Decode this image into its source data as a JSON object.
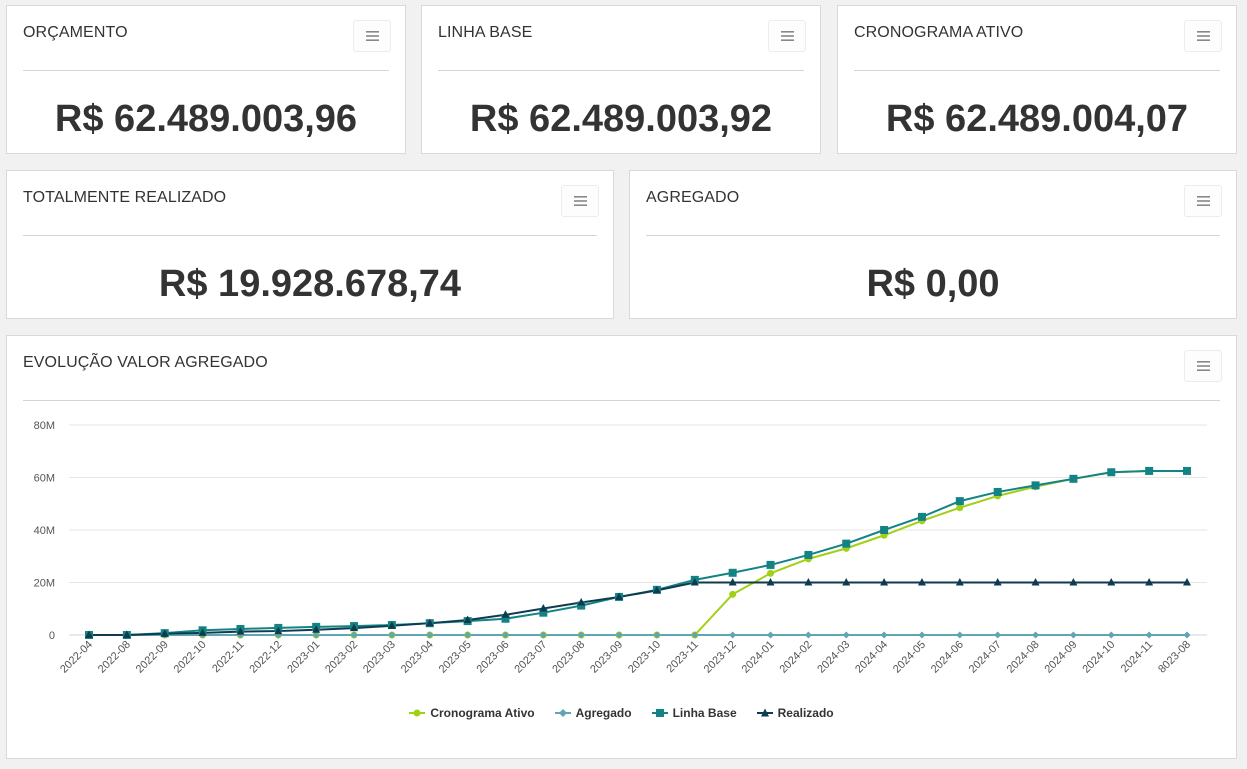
{
  "cards": {
    "orcamento": {
      "title": "ORÇAMENTO",
      "value": "R$ 62.489.003,96"
    },
    "linha_base": {
      "title": "LINHA BASE",
      "value": "R$ 62.489.003,92"
    },
    "cronograma_ativo": {
      "title": "CRONOGRAMA ATIVO",
      "value": "R$ 62.489.004,07"
    },
    "totalmente_realizado": {
      "title": "TOTALMENTE REALIZADO",
      "value": "R$ 19.928.678,74"
    },
    "agregado": {
      "title": "AGREGADO",
      "value": "R$ 0,00"
    }
  },
  "icons": {
    "menu": "hamburger-menu-icon"
  },
  "chart_panel": {
    "title": "EVOLUÇÃO VALOR AGREGADO"
  },
  "chart_data": {
    "type": "line",
    "title": "",
    "xlabel": "",
    "ylabel": "",
    "ylim": [
      0,
      80
    ],
    "yticks": [
      0,
      20,
      40,
      60,
      80
    ],
    "ytick_labels": [
      "0",
      "20M",
      "40M",
      "60M",
      "80M"
    ],
    "grid": true,
    "legend_position": "bottom",
    "categories": [
      "2022-04",
      "2022-08",
      "2022-09",
      "2022-10",
      "2022-11",
      "2022-12",
      "2023-01",
      "2023-02",
      "2023-03",
      "2023-04",
      "2023-05",
      "2023-06",
      "2023-07",
      "2023-08",
      "2023-09",
      "2023-10",
      "2023-11",
      "2023-12",
      "2024-01",
      "2024-02",
      "2024-03",
      "2024-04",
      "2024-05",
      "2024-06",
      "2024-07",
      "2024-08",
      "2024-09",
      "2024-10",
      "2024-11",
      "8023-08"
    ],
    "series": [
      {
        "name": "Cronograma Ativo",
        "color": "#a1d014",
        "marker": "circle",
        "values": [
          0,
          0,
          0,
          0,
          0,
          0,
          0,
          0,
          0,
          0,
          0,
          0,
          0,
          0,
          0,
          0,
          0,
          15.5,
          23.5,
          29,
          33,
          38,
          43.5,
          48.5,
          53,
          56.5,
          59.5,
          62,
          62.5,
          62.5
        ]
      },
      {
        "name": "Agregado",
        "color": "#5fa6b4",
        "marker": "diamond",
        "values": [
          0,
          0,
          0,
          0,
          0,
          0,
          0,
          0,
          0,
          0,
          0,
          0,
          0,
          0,
          0,
          0,
          0,
          0,
          0,
          0,
          0,
          0,
          0,
          0,
          0,
          0,
          0,
          0,
          0,
          0
        ]
      },
      {
        "name": "Linha Base",
        "color": "#138384",
        "marker": "square",
        "values": [
          0,
          0,
          0.7,
          1.8,
          2.3,
          2.7,
          3.1,
          3.4,
          3.8,
          4.5,
          5.3,
          6.2,
          8.5,
          11.2,
          14.5,
          17.2,
          21,
          23.7,
          26.7,
          30.5,
          34.8,
          40,
          45,
          51,
          54.5,
          57,
          59.5,
          62,
          62.5,
          62.5
        ]
      },
      {
        "name": "Realizado",
        "color": "#0e3b4f",
        "marker": "triangle",
        "values": [
          0,
          0,
          0.5,
          0.8,
          1.3,
          1.5,
          2,
          2.6,
          3.5,
          4.5,
          5.7,
          7.7,
          10.1,
          12.4,
          14.5,
          17,
          20,
          20,
          20,
          20,
          20,
          20,
          20,
          20,
          20,
          20,
          20,
          20,
          20,
          20
        ]
      }
    ]
  }
}
